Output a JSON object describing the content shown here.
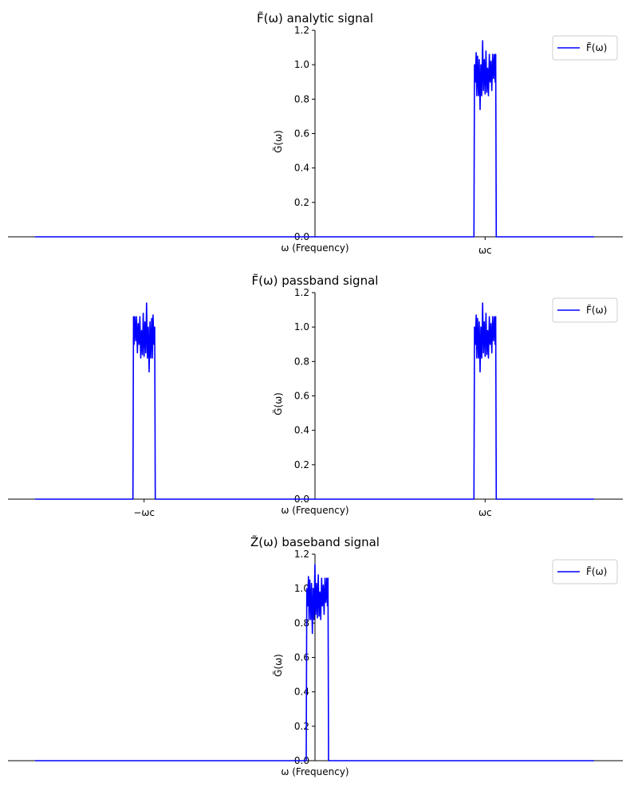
{
  "chart_data": [
    {
      "type": "line",
      "title": "F̃(ω) analytic signal",
      "xlabel": "ω (Frequency)",
      "ylabel": "G̃(ω)",
      "ylim": [
        0,
        1.2
      ],
      "xlim": [
        -10,
        10
      ],
      "yticks": [
        "0.0",
        "0.2",
        "0.4",
        "0.6",
        "0.8",
        "1.0",
        "1.2"
      ],
      "xtick_labels": [
        {
          "x": 6.1,
          "label": "ωc"
        }
      ],
      "legend": {
        "position": "top-right",
        "entries": [
          "F̃(ω)"
        ]
      },
      "grid": false,
      "series": [
        {
          "name": "F̃(ω)",
          "color": "#0000ff",
          "x": [
            -10,
            5.7,
            5.72,
            5.75,
            5.78,
            5.8,
            5.83,
            5.86,
            5.89,
            5.92,
            5.95,
            5.98,
            6.01,
            6.04,
            6.07,
            6.1,
            6.13,
            6.16,
            6.19,
            6.22,
            6.25,
            6.28,
            6.31,
            6.34,
            6.37,
            6.4,
            6.43,
            6.46,
            6.48,
            6.5,
            10
          ],
          "y": [
            0,
            0,
            1.0,
            0.9,
            1.07,
            0.82,
            1.05,
            0.82,
            1.03,
            0.74,
            1.0,
            0.82,
            1.14,
            0.85,
            1.03,
            0.83,
            1.08,
            0.84,
            0.98,
            0.82,
            1.06,
            0.9,
            1.02,
            0.85,
            1.06,
            0.92,
            1.06,
            0.9,
            1.06,
            0,
            0
          ]
        }
      ]
    },
    {
      "type": "line",
      "title": "F̃(ω) passband signal",
      "xlabel": "ω (Frequency)",
      "ylabel": "G̃(ω)",
      "ylim": [
        0,
        1.2
      ],
      "xlim": [
        -10,
        10
      ],
      "yticks": [
        "0.0",
        "0.2",
        "0.4",
        "0.6",
        "0.8",
        "1.0",
        "1.2"
      ],
      "xtick_labels": [
        {
          "x": -6.1,
          "label": "−ωc"
        },
        {
          "x": 6.1,
          "label": "ωc"
        }
      ],
      "legend": {
        "position": "top-right",
        "entries": [
          "F̃(ω)"
        ]
      },
      "grid": false,
      "series": [
        {
          "name": "F̃(ω)",
          "color": "#0000ff",
          "x": [
            -10,
            -6.5,
            -6.48,
            -6.46,
            -6.43,
            -6.4,
            -6.37,
            -6.34,
            -6.31,
            -6.28,
            -6.25,
            -6.22,
            -6.19,
            -6.16,
            -6.13,
            -6.1,
            -6.07,
            -6.04,
            -6.01,
            -5.98,
            -5.95,
            -5.92,
            -5.89,
            -5.86,
            -5.83,
            -5.8,
            -5.78,
            -5.75,
            -5.72,
            -5.7,
            5.7,
            5.72,
            5.75,
            5.78,
            5.8,
            5.83,
            5.86,
            5.89,
            5.92,
            5.95,
            5.98,
            6.01,
            6.04,
            6.07,
            6.1,
            6.13,
            6.16,
            6.19,
            6.22,
            6.25,
            6.28,
            6.31,
            6.34,
            6.37,
            6.4,
            6.43,
            6.46,
            6.48,
            6.5,
            10
          ],
          "y": [
            0,
            0,
            1.06,
            0.9,
            1.06,
            0.92,
            1.06,
            0.85,
            1.02,
            0.9,
            1.06,
            0.82,
            0.98,
            0.84,
            1.08,
            0.83,
            1.03,
            0.85,
            1.14,
            0.82,
            1.0,
            0.74,
            1.03,
            0.82,
            1.05,
            0.82,
            1.07,
            0.9,
            1.0,
            0,
            0,
            1.0,
            0.9,
            1.07,
            0.82,
            1.05,
            0.82,
            1.03,
            0.74,
            1.0,
            0.82,
            1.14,
            0.85,
            1.03,
            0.83,
            1.08,
            0.84,
            0.98,
            0.82,
            1.06,
            0.9,
            1.02,
            0.85,
            1.06,
            0.92,
            1.06,
            0.9,
            1.06,
            0,
            0
          ]
        }
      ]
    },
    {
      "type": "line",
      "title": "Z̃(ω) baseband signal",
      "xlabel": "ω (Frequency)",
      "ylabel": "G̃(ω)",
      "ylim": [
        0,
        1.2
      ],
      "xlim": [
        -10,
        10
      ],
      "yticks": [
        "0.0",
        "0.2",
        "0.4",
        "0.6",
        "0.8",
        "1.0",
        "1.2"
      ],
      "xtick_labels": [],
      "legend": {
        "position": "top-right",
        "entries": [
          "F̃(ω)"
        ]
      },
      "grid": false,
      "series": [
        {
          "name": "F̃(ω)",
          "color": "#0000ff",
          "x": [
            -10,
            -0.3,
            -0.28,
            -0.25,
            -0.22,
            -0.2,
            -0.17,
            -0.14,
            -0.11,
            -0.08,
            -0.05,
            -0.02,
            0.01,
            0.04,
            0.07,
            0.1,
            0.13,
            0.16,
            0.19,
            0.22,
            0.25,
            0.28,
            0.31,
            0.34,
            0.37,
            0.4,
            0.43,
            0.46,
            0.48,
            0.5,
            10
          ],
          "y": [
            0,
            0,
            1.0,
            0.9,
            1.07,
            0.82,
            1.05,
            0.82,
            1.03,
            0.74,
            1.0,
            0.82,
            1.14,
            0.85,
            1.03,
            0.83,
            1.08,
            0.84,
            0.98,
            0.82,
            1.06,
            0.9,
            1.02,
            0.85,
            1.06,
            0.92,
            1.06,
            0.9,
            1.06,
            0,
            0
          ]
        }
      ]
    }
  ]
}
